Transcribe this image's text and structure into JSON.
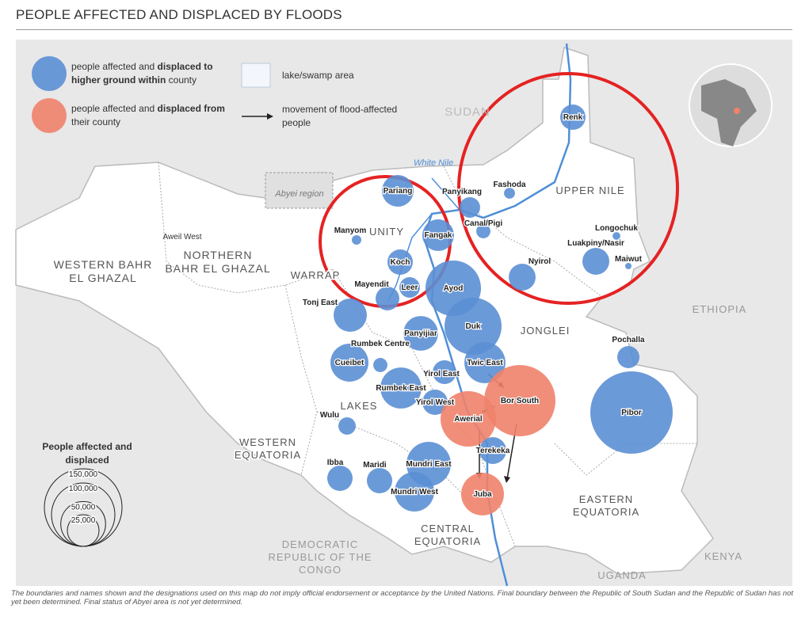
{
  "title": "PEOPLE AFFECTED AND DISPLACED BY FLOODS",
  "legend": {
    "items": [
      {
        "color": "#5b8fd4",
        "parts": [
          {
            "text": "people affected and ",
            "bold": false
          },
          {
            "text": "displaced to higher ground within",
            "bold": true
          },
          {
            "text": " county",
            "bold": false
          }
        ]
      },
      {
        "color": "#f0826a",
        "parts": [
          {
            "text": "people affected and ",
            "bold": false
          },
          {
            "text": "displaced from",
            "bold": true
          },
          {
            "text": " their county",
            "bold": false
          }
        ]
      }
    ],
    "lake": "lake/swamp area",
    "movement": "movement of flood-affected people"
  },
  "size_legend": {
    "title": "People affected and displaced",
    "sizes": [
      {
        "value": 150000,
        "label": "150,000"
      },
      {
        "value": 100000,
        "label": "100,000"
      },
      {
        "value": 50000,
        "label": "50,000"
      },
      {
        "value": 25000,
        "label": "25,000"
      }
    ]
  },
  "regions": [
    {
      "lines": [
        "SUDAN"
      ]
    },
    {
      "lines": [
        "UPPER NILE"
      ]
    },
    {
      "lines": [
        "UNITY"
      ]
    },
    {
      "lines": [
        "WESTERN BAHR",
        "EL GHAZAL"
      ]
    },
    {
      "lines": [
        "NORTHERN",
        "BAHR EL GHAZAL"
      ]
    },
    {
      "lines": [
        "WARRAP"
      ]
    },
    {
      "lines": [
        "JONGLEI"
      ]
    },
    {
      "lines": [
        "LAKES"
      ]
    },
    {
      "lines": [
        "WESTERN",
        "EQUATORIA"
      ]
    },
    {
      "lines": [
        "CENTRAL",
        "EQUATORIA"
      ]
    },
    {
      "lines": [
        "EASTERN",
        "EQUATORIA"
      ]
    },
    {
      "lines": [
        "ETHIOPIA"
      ]
    },
    {
      "lines": [
        "DEMOCRATIC",
        "REPUBLIC OF THE",
        "CONGO"
      ]
    },
    {
      "lines": [
        "UGANDA"
      ]
    },
    {
      "lines": [
        "KENYA"
      ]
    }
  ],
  "places": [
    "Abyei region",
    "White Nile",
    "Aweil West"
  ],
  "counties": [
    {
      "label": "Renk",
      "value": 16000,
      "kind": "within"
    },
    {
      "label": "Fashoda",
      "value": 3000,
      "kind": "within"
    },
    {
      "label": "Panyikang",
      "value": 10500,
      "kind": "within"
    },
    {
      "label": "Canal/Pigi",
      "value": 5000,
      "kind": "within"
    },
    {
      "label": "Longochuk",
      "value": 1500,
      "kind": "within"
    },
    {
      "label": "Luakpiny/Nasir",
      "value": 18000,
      "kind": "within"
    },
    {
      "label": "Maiwut",
      "value": 1000,
      "kind": "within"
    },
    {
      "label": "Nyirol",
      "value": 18000,
      "kind": "within"
    },
    {
      "label": "Pariang",
      "value": 25000,
      "kind": "within"
    },
    {
      "label": "Fangak",
      "value": 25000,
      "kind": "within"
    },
    {
      "label": "Manyom",
      "value": 2250,
      "kind": "within"
    },
    {
      "label": "Koch",
      "value": 16000,
      "kind": "within"
    },
    {
      "label": "Mayendit",
      "value": 14000,
      "kind": "within"
    },
    {
      "label": "Leer",
      "value": 10500,
      "kind": "within"
    },
    {
      "label": "Ayod",
      "value": 76500,
      "kind": "within"
    },
    {
      "label": "Duk",
      "value": 81000,
      "kind": "within"
    },
    {
      "label": "Tonj East",
      "value": 27500,
      "kind": "within"
    },
    {
      "label": "Panyijiar",
      "value": 30000,
      "kind": "within"
    },
    {
      "label": "Rumbek Centre",
      "value": 5000,
      "kind": "within"
    },
    {
      "label": "Cueibet",
      "value": 36000,
      "kind": "within"
    },
    {
      "label": "Twic East",
      "value": 42000,
      "kind": "within"
    },
    {
      "label": "Yirol East",
      "value": 14000,
      "kind": "within"
    },
    {
      "label": "Rumbek East",
      "value": 42000,
      "kind": "within"
    },
    {
      "label": "Yirol West",
      "value": 16000,
      "kind": "within"
    },
    {
      "label": "Bor South",
      "value": 126500,
      "kind": "from"
    },
    {
      "label": "Awerial",
      "value": 76500,
      "kind": "from"
    },
    {
      "label": "Wulu",
      "value": 7500,
      "kind": "within"
    },
    {
      "label": "Pibor",
      "value": 169000,
      "kind": "within"
    },
    {
      "label": "Terekeka",
      "value": 18000,
      "kind": "within"
    },
    {
      "label": "Mundri East",
      "value": 49000,
      "kind": "within"
    },
    {
      "label": "Ibba",
      "value": 16000,
      "kind": "within"
    },
    {
      "label": "Maridi",
      "value": 16000,
      "kind": "within"
    },
    {
      "label": "Mundri West",
      "value": 39000,
      "kind": "within"
    },
    {
      "label": "Juba",
      "value": 45500,
      "kind": "from"
    },
    {
      "label": "Pochalla",
      "value": 12250,
      "kind": "within"
    }
  ],
  "footnote": "The boundaries and names shown and the designations used on this map do not imply official endorsement or acceptance by the United Nations. Final boundary between the Republic of South Sudan and the Republic of Sudan has not yet been determined. Final status of Abyei area is not yet determined."
}
